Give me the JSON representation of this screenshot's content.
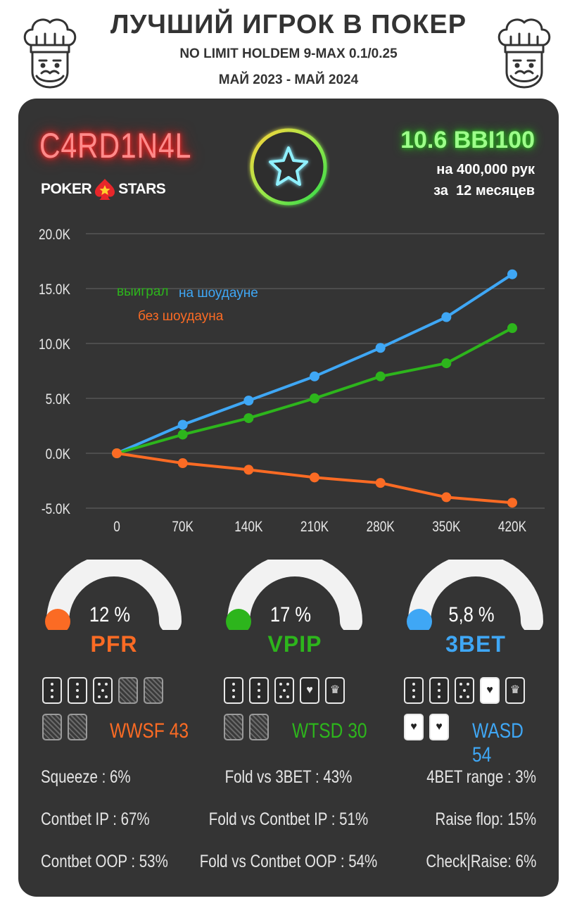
{
  "header": {
    "title": "ЛУЧШИЙ ИГРОК В ПОКЕР",
    "subtitle": "NO LIMIT HOLDEM 9-MAX 0.1/0.25",
    "period": "МАЙ 2023 - МАЙ 2024"
  },
  "player": {
    "name": "C4RD1N4L",
    "room_left": "POKER",
    "room_right": "STARS"
  },
  "summary": {
    "winrate": "10.6 BBI100",
    "hands": "на 400,000 рук",
    "period": "за  12 месяцев"
  },
  "colors": {
    "blue": "#3fa7f5",
    "green": "#2db51c",
    "orange": "#fb6b24",
    "card_bg": "#343434",
    "grid": "#666666"
  },
  "chart_data": {
    "type": "line",
    "x": [
      "0",
      "70K",
      "140K",
      "210K",
      "280K",
      "350K",
      "420K"
    ],
    "y_ticks": [
      "20.0K",
      "15.0K",
      "10.0K",
      "5.0K",
      "0.0K",
      "-5.0K"
    ],
    "ylim": [
      -5000,
      20000
    ],
    "grid": true,
    "legend": "top-left",
    "series": [
      {
        "name": "на шоудауне",
        "color": "#3fa7f5",
        "values": [
          0,
          2600,
          4800,
          7000,
          9600,
          12400,
          16300
        ]
      },
      {
        "name": "выиграл",
        "color": "#2db51c",
        "values": [
          0,
          1700,
          3200,
          5000,
          7000,
          8200,
          11400
        ]
      },
      {
        "name": "без шоудауна",
        "color": "#fb6b24",
        "values": [
          0,
          -900,
          -1500,
          -2200,
          -2700,
          -4000,
          -4500
        ]
      }
    ]
  },
  "gauges": [
    {
      "value": "12 %",
      "label": "PFR",
      "color": "#fb6b24",
      "level": 0.12
    },
    {
      "value": "17 %",
      "label": "VPIP",
      "color": "#2db51c",
      "level": 0.17
    },
    {
      "value": "5,8 %",
      "label": "3BET",
      "color": "#3fa7f5",
      "level": 0.058
    }
  ],
  "wstats": [
    {
      "text": "WWSF 43",
      "color": "#fb6b24"
    },
    {
      "text": "WTSD 30",
      "color": "#2db51c"
    },
    {
      "text": "WASD 54",
      "color": "#3fa7f5"
    }
  ],
  "stats": {
    "left": [
      "Squeeze : 6%",
      "Contbet IP : 67%",
      "Contbet OOP : 53%"
    ],
    "center": [
      "Fold vs 3BET : 43%",
      "Fold vs Contbet IP : 51%",
      "Fold vs Contbet OOP : 54%"
    ],
    "right": [
      "4BET range : 3%",
      "Raise flop: 15%",
      "Check|Raise: 6%"
    ]
  }
}
